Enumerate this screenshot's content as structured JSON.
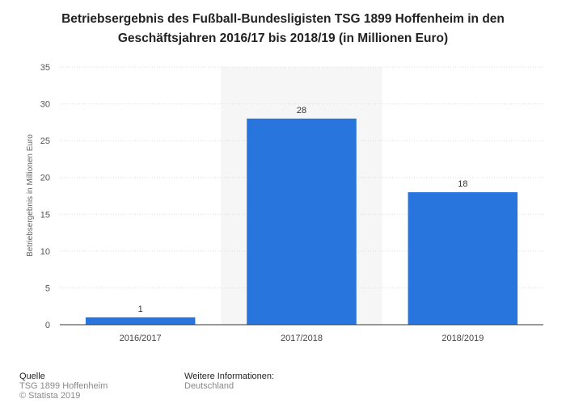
{
  "title": {
    "line1": "Betriebsergebnis des Fußball-Bundesligisten TSG 1899 Hoffenheim in den",
    "line2": "Geschäftsjahren 2016/17 bis 2018/19 (in Millionen Euro)"
  },
  "chart_data": {
    "type": "bar",
    "title": "Betriebsergebnis des Fußball-Bundesligisten TSG 1899 Hoffenheim in den Geschäftsjahren 2016/17 bis 2018/19 (in Millionen Euro)",
    "categories": [
      "2016/2017",
      "2017/2018",
      "2018/2019"
    ],
    "values": [
      1,
      28,
      18
    ],
    "xlabel": "",
    "ylabel": "Betriebsergebnis in Millionen Euro",
    "ylim": [
      0,
      35
    ],
    "yticks": [
      0,
      5,
      10,
      15,
      20,
      25,
      30,
      35
    ],
    "grid": true,
    "highlighted_category": "2017/2018",
    "bar_color": "#2876dd",
    "highlight_color": "#f6f6f6"
  },
  "footer": {
    "source_label": "Quelle",
    "source_line1": "TSG 1899 Hoffenheim",
    "source_line2": "© Statista 2019",
    "info_label": "Weitere Informationen:",
    "info_line1": "Deutschland"
  }
}
